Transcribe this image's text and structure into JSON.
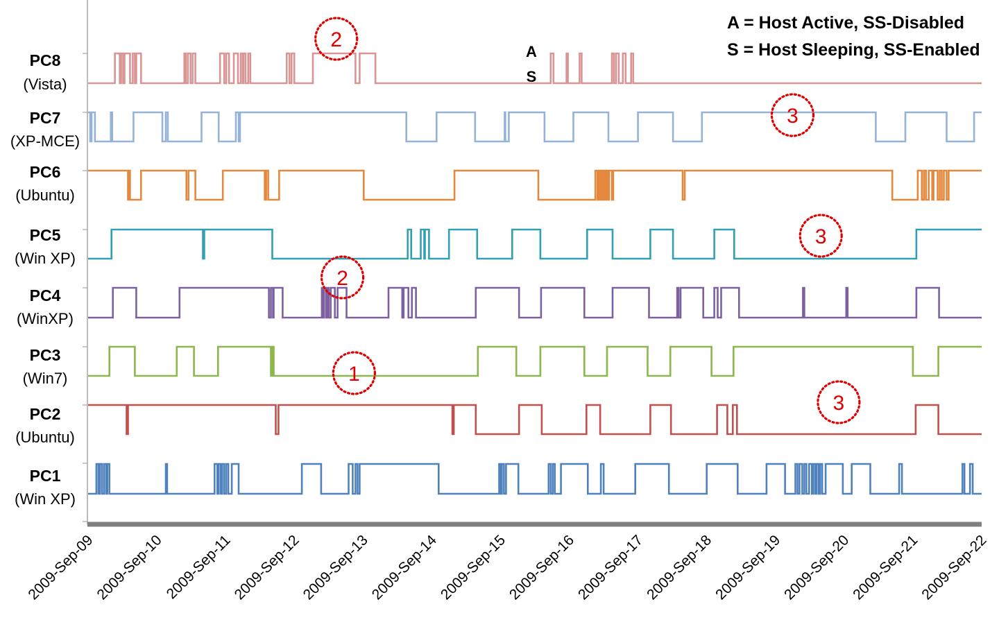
{
  "chart_data": {
    "type": "line",
    "x_ticks": [
      "2009-Sep-09",
      "2009-Sep-10",
      "2009-Sep-11",
      "2009-Sep-12",
      "2009-Sep-13",
      "2009-Sep-14",
      "2009-Sep-15",
      "2009-Sep-16",
      "2009-Sep-17",
      "2009-Sep-18",
      "2009-Sep-19",
      "2009-Sep-20",
      "2009-Sep-21",
      "2009-Sep-22"
    ],
    "xlim": [
      0,
      13
    ],
    "legend": [
      "A = Host Active, SS-Disabled",
      "S = Host Sleeping, SS-Enabled"
    ],
    "state_markers": {
      "active": "A",
      "sleeping": "S"
    },
    "series": [
      {
        "name": "PC8",
        "os": "(Vista)",
        "color": "#d99594",
        "initial": 0,
        "toggles": [
          0.39,
          0.46,
          0.48,
          0.51,
          0.53,
          0.61,
          0.65,
          0.68,
          0.7,
          0.77,
          1.4,
          1.42,
          1.45,
          1.49,
          1.52,
          1.56,
          1.92,
          1.98,
          2.01,
          2.05,
          2.12,
          2.18,
          2.22,
          2.25,
          2.26,
          2.29,
          2.33,
          2.36,
          2.89,
          2.93,
          2.96,
          3.0,
          3.27,
          3.89,
          3.95,
          4.18,
          6.73,
          6.77,
          6.96,
          6.98,
          7.15,
          7.18,
          7.62,
          7.65,
          7.68,
          7.72,
          7.78,
          7.82,
          7.9,
          7.93
        ]
      },
      {
        "name": "PC7",
        "os": "(XP-MCE)",
        "color": "#95b3d7",
        "initial": 1,
        "toggles": [
          0.03,
          0.05,
          0.1,
          0.33,
          0.35,
          0.66,
          1.08,
          1.13,
          1.16,
          1.65,
          1.9,
          2.15,
          2.19,
          2.21,
          4.63,
          5.07,
          5.63,
          6.06,
          6.07,
          6.12,
          6.64,
          7.06,
          7.57,
          8.0,
          8.51,
          8.93,
          11.46,
          11.89,
          12.49,
          12.89
        ]
      },
      {
        "name": "PC6",
        "os": "(Ubuntu)",
        "color": "#e3883c",
        "initial": 1,
        "toggles": [
          0.58,
          0.59,
          0.61,
          0.77,
          1.43,
          1.46,
          1.56,
          1.96,
          2.57,
          2.59,
          2.62,
          2.78,
          4.01,
          5.33,
          6.55,
          7.38,
          7.41,
          7.43,
          7.44,
          7.46,
          7.48,
          7.5,
          7.52,
          7.54,
          7.56,
          7.58,
          7.62,
          7.64,
          8.65,
          8.68,
          11.7,
          12.07,
          12.13,
          12.16,
          12.19,
          12.23,
          12.28,
          12.3,
          12.36,
          12.39,
          12.42,
          12.45,
          12.49,
          12.52
        ]
      },
      {
        "name": "PC5",
        "os": "(Win XP)",
        "color": "#31a0b0",
        "initial": 0,
        "toggles": [
          0.34,
          1.67,
          1.69,
          2.68,
          4.65,
          4.7,
          4.84,
          4.89,
          4.9,
          4.96,
          5.25,
          5.66,
          6.17,
          6.58,
          7.26,
          7.63,
          8.18,
          8.51,
          9.11,
          9.4,
          12.05
        ]
      },
      {
        "name": "PC4",
        "os": "(WinXP)",
        "color": "#7d60a0",
        "initial": 0,
        "toggles": [
          0.36,
          0.7,
          1.33,
          2.63,
          2.66,
          2.69,
          2.7,
          2.83,
          3.4,
          3.42,
          3.43,
          3.46,
          3.48,
          3.5,
          3.53,
          3.59,
          3.63,
          3.76,
          4.37,
          4.57,
          4.59,
          4.66,
          4.71,
          4.77,
          5.64,
          6.27,
          6.59,
          7.22,
          7.63,
          8.16,
          8.57,
          8.59,
          8.62,
          8.95,
          9.11,
          9.16,
          9.21,
          9.47,
          10.4,
          10.42,
          11.03,
          11.05,
          12.05,
          12.38
        ]
      },
      {
        "name": "PC3",
        "os": "(Win7)",
        "color": "#8db64b",
        "initial": 0,
        "toggles": [
          0.31,
          0.68,
          1.29,
          1.54,
          1.89,
          2.66,
          2.68,
          2.7,
          5.67,
          6.23,
          6.58,
          7.22,
          7.55,
          8.14,
          8.47,
          9.07,
          9.39,
          12.0,
          12.37
        ]
      },
      {
        "name": "PC2",
        "os": "(Ubuntu)",
        "color": "#c0504d",
        "initial": 1,
        "toggles": [
          0.56,
          0.58,
          2.73,
          2.77,
          5.3,
          5.32,
          5.64,
          6.27,
          6.6,
          7.25,
          7.45,
          8.18,
          8.48,
          9.15,
          9.3,
          9.38,
          9.44,
          12.04,
          12.37
        ]
      },
      {
        "name": "PC1",
        "os": "(Win XP)",
        "color": "#4f81bd",
        "initial": 0,
        "toggles": [
          0.12,
          0.15,
          0.17,
          0.2,
          0.23,
          0.26,
          0.28,
          0.31,
          1.13,
          1.15,
          1.84,
          1.88,
          1.9,
          1.93,
          1.95,
          1.98,
          2.01,
          2.04,
          2.09,
          2.19,
          3.11,
          3.39,
          3.79,
          3.85,
          3.89,
          3.92,
          3.95,
          5.1,
          5.98,
          6.0,
          6.02,
          6.05,
          6.08,
          6.26,
          6.7,
          6.73,
          6.76,
          6.79,
          6.88,
          7.27,
          7.46,
          7.5,
          7.96,
          8.45,
          9.0,
          9.45,
          9.87,
          10.14,
          10.29,
          10.32,
          10.35,
          10.39,
          10.42,
          10.45,
          10.49,
          10.53,
          10.55,
          10.58,
          10.6,
          10.63,
          10.65,
          10.68,
          10.73,
          10.98,
          11.11,
          11.38,
          11.8,
          11.84,
          12.72,
          12.75,
          12.83,
          12.87
        ]
      }
    ],
    "annotations": [
      {
        "label": "2",
        "x": 3.61,
        "row": 0
      },
      {
        "label": "3",
        "x": 10.25,
        "row": 1
      },
      {
        "label": "3",
        "x": 10.66,
        "row": 3
      },
      {
        "label": "2",
        "x": 3.7,
        "row": 4
      },
      {
        "label": "1",
        "x": 3.87,
        "row": 5
      },
      {
        "label": "3",
        "x": 10.92,
        "row": 6
      }
    ],
    "ab_marker": {
      "x": 6.45,
      "row": 0
    }
  }
}
